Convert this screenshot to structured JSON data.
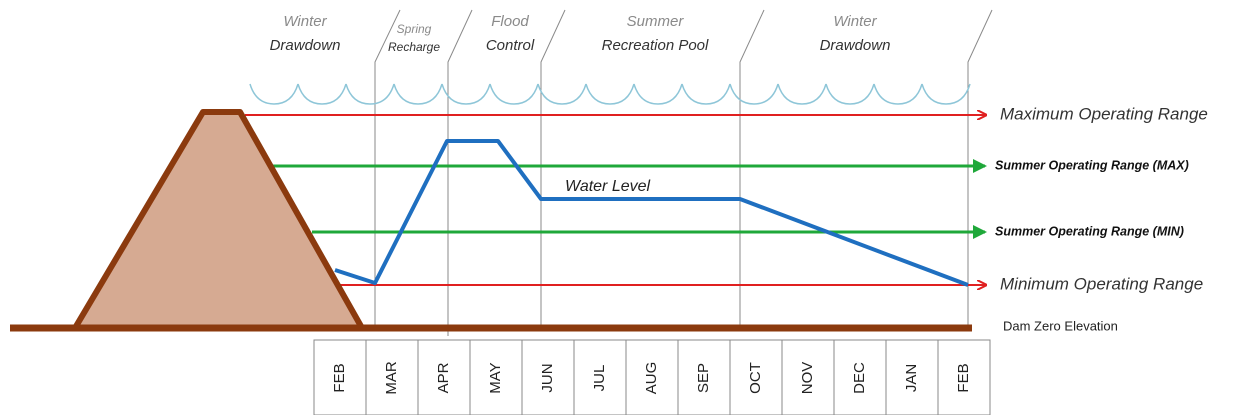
{
  "seasons": [
    {
      "top": "Winter",
      "bottom": "Drawdown"
    },
    {
      "top": "Spring",
      "bottom": "Recharge"
    },
    {
      "top": "Flood",
      "bottom": "Control"
    },
    {
      "top": "Summer",
      "bottom": "Recreation Pool"
    },
    {
      "top": "Winter",
      "bottom": "Drawdown"
    }
  ],
  "ranges": {
    "maximum": "Maximum Operating Range",
    "summer_max": "Summer Operating Range (MAX)",
    "summer_min": "Summer Operating Range (MIN)",
    "minimum": "Minimum Operating Range"
  },
  "water_level_label": "Water Level",
  "dam_zero_label": "Dam Zero Elevation",
  "months": [
    "FEB",
    "MAR",
    "APR",
    "MAY",
    "JUN",
    "JUL",
    "AUG",
    "SEP",
    "OCT",
    "NOV",
    "DEC",
    "JAN",
    "FEB"
  ]
}
